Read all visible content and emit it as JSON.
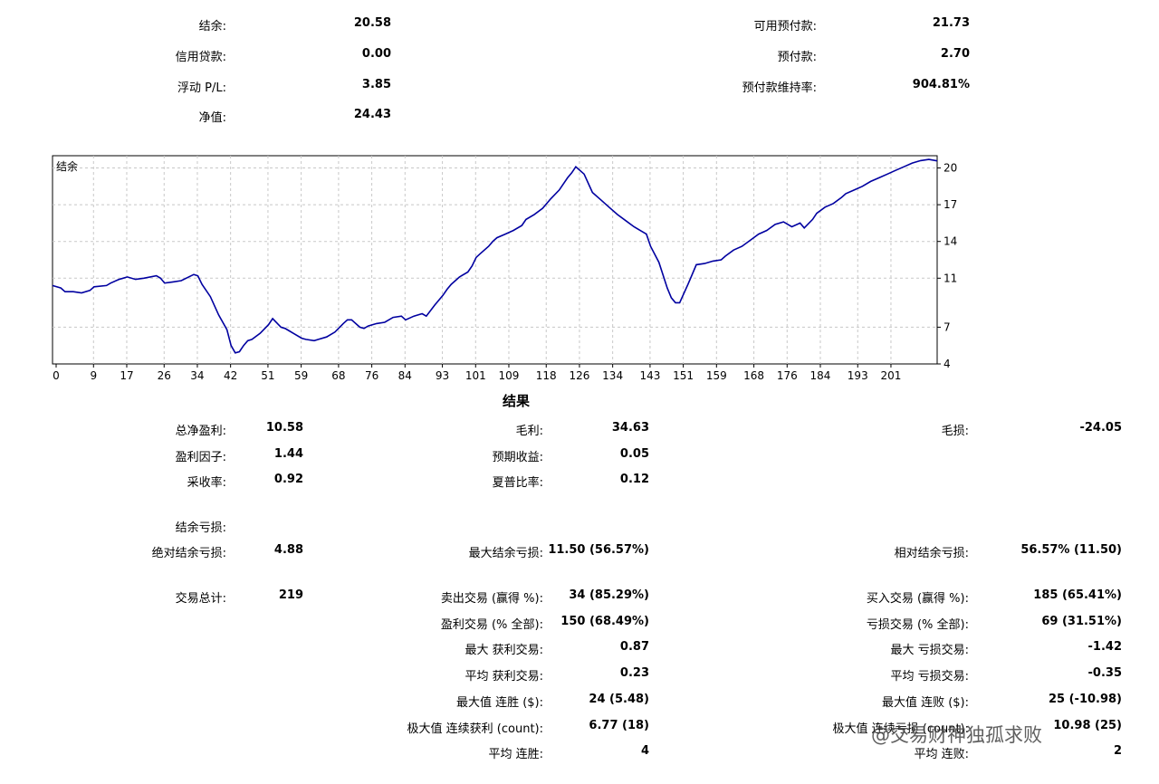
{
  "summary": {
    "balance": {
      "label": "结余:",
      "value": "20.58"
    },
    "credit": {
      "label": "信用贷款:",
      "value": "0.00"
    },
    "floating_pl": {
      "label": "浮动 P/L:",
      "value": "3.85"
    },
    "equity": {
      "label": "净值:",
      "value": "24.43"
    },
    "free_margin": {
      "label": "可用预付款:",
      "value": "21.73"
    },
    "margin": {
      "label": "预付款:",
      "value": "2.70"
    },
    "margin_level": {
      "label": "预付款维持率:",
      "value": "904.81%"
    }
  },
  "chart_data": {
    "type": "line",
    "title": "结余",
    "xlabel": "",
    "ylabel": "",
    "x_ticks": [
      "0",
      "9",
      "17",
      "26",
      "34",
      "42",
      "51",
      "59",
      "68",
      "76",
      "84",
      "93",
      "101",
      "109",
      "118",
      "126",
      "134",
      "143",
      "151",
      "159",
      "168",
      "176",
      "184",
      "193",
      "201"
    ],
    "y_ticks": [
      "4",
      "7",
      "11",
      "14",
      "17",
      "20"
    ],
    "xlim": [
      0,
      213
    ],
    "ylim": [
      4,
      21
    ],
    "grid": true,
    "line_color": "#0000a0",
    "series": [
      {
        "name": "结余",
        "x": [
          0,
          2,
          3,
          5,
          7,
          9,
          10,
          13,
          14,
          16,
          17,
          18,
          20,
          22,
          25,
          26,
          27,
          29,
          31,
          34,
          35,
          36,
          38,
          40,
          42,
          43,
          44,
          45,
          46,
          47,
          48,
          50,
          52,
          53,
          55,
          56,
          57,
          58,
          60,
          61,
          63,
          64,
          66,
          68,
          70,
          71,
          72,
          74,
          75,
          76,
          78,
          80,
          82,
          84,
          85,
          87,
          89,
          90,
          92,
          94,
          95,
          96,
          98,
          100,
          101,
          102,
          103,
          105,
          106,
          107,
          109,
          111,
          113,
          114,
          116,
          118,
          120,
          122,
          124,
          125,
          126,
          128,
          130,
          132,
          134,
          136,
          138,
          140,
          143,
          144,
          146,
          148,
          149,
          150,
          151,
          153,
          155,
          157,
          159,
          161,
          162,
          164,
          166,
          168,
          170,
          172,
          174,
          176,
          178,
          180,
          181,
          183,
          184,
          186,
          188,
          190,
          191,
          193,
          195,
          197,
          199,
          201,
          203,
          205,
          207,
          209,
          211,
          213
        ],
        "y": [
          10.4,
          10.2,
          9.9,
          9.9,
          9.8,
          10.0,
          10.3,
          10.4,
          10.6,
          10.9,
          11.0,
          11.1,
          10.9,
          11.0,
          11.2,
          11.0,
          10.6,
          10.7,
          10.8,
          11.3,
          11.2,
          10.5,
          9.5,
          8.0,
          6.8,
          5.5,
          4.9,
          5.0,
          5.5,
          5.9,
          6.0,
          6.5,
          7.2,
          7.7,
          7.0,
          6.9,
          6.7,
          6.5,
          6.1,
          6.0,
          5.9,
          6.0,
          6.2,
          6.6,
          7.3,
          7.6,
          7.6,
          7.0,
          6.9,
          7.1,
          7.3,
          7.4,
          7.8,
          7.9,
          7.6,
          7.9,
          8.1,
          7.9,
          8.8,
          9.6,
          10.1,
          10.5,
          11.1,
          11.5,
          12.0,
          12.7,
          13.0,
          13.6,
          14.0,
          14.3,
          14.6,
          14.9,
          15.3,
          15.8,
          16.2,
          16.7,
          17.5,
          18.2,
          19.2,
          19.6,
          20.1,
          19.5,
          18.0,
          17.4,
          16.8,
          16.2,
          15.7,
          15.2,
          14.6,
          13.6,
          12.3,
          10.2,
          9.4,
          9.0,
          9.0,
          10.5,
          12.1,
          12.2,
          12.4,
          12.5,
          12.8,
          13.3,
          13.6,
          14.1,
          14.6,
          14.9,
          15.4,
          15.6,
          15.2,
          15.5,
          15.1,
          15.8,
          16.3,
          16.8,
          17.1,
          17.6,
          17.9,
          18.2,
          18.5,
          18.9,
          19.2,
          19.5,
          19.8,
          20.1,
          20.4,
          20.6,
          20.7,
          20.58
        ]
      }
    ]
  },
  "results": {
    "title": "结果",
    "total_net_profit": {
      "label": "总净盈利:",
      "value": "10.58"
    },
    "gross_profit": {
      "label": "毛利:",
      "value": "34.63"
    },
    "gross_loss": {
      "label": "毛损:",
      "value": "-24.05"
    },
    "profit_factor": {
      "label": "盈利因子:",
      "value": "1.44"
    },
    "expected_payoff": {
      "label": "预期收益:",
      "value": "0.05"
    },
    "recovery_factor": {
      "label": "采收率:",
      "value": "0.92"
    },
    "sharpe_ratio": {
      "label": "夏普比率:",
      "value": "0.12"
    },
    "drawdown_header": {
      "label": "结余亏损:"
    },
    "abs_drawdown": {
      "label": "绝对结余亏损:",
      "value": "4.88"
    },
    "max_drawdown": {
      "label": "最大结余亏损:",
      "value": "11.50 (56.57%)"
    },
    "rel_drawdown": {
      "label": "相对结余亏损:",
      "value": "56.57% (11.50)"
    },
    "total_trades": {
      "label": "交易总计:",
      "value": "219"
    },
    "short_trades": {
      "label": "卖出交易 (赢得 %):",
      "value": "34 (85.29%)"
    },
    "long_trades": {
      "label": "买入交易 (赢得 %):",
      "value": "185 (65.41%)"
    },
    "profit_trades": {
      "label": "盈利交易 (% 全部):",
      "value": "150 (68.49%)"
    },
    "loss_trades": {
      "label": "亏损交易 (% 全部):",
      "value": "69 (31.51%)"
    },
    "largest_profit": {
      "label": "最大 获利交易:",
      "value": "0.87"
    },
    "largest_loss": {
      "label": "最大 亏损交易:",
      "value": "-1.42"
    },
    "avg_profit": {
      "label": "平均 获利交易:",
      "value": "0.23"
    },
    "avg_loss": {
      "label": "平均 亏损交易:",
      "value": "-0.35"
    },
    "max_consec_wins": {
      "label": "最大值 连胜 ($):",
      "value": "24 (5.48)"
    },
    "max_consec_losses": {
      "label": "最大值 连败 ($):",
      "value": "25 (-10.98)"
    },
    "max_consec_profit": {
      "label": "极大值 连续获利 (count):",
      "value": "6.77 (18)"
    },
    "max_consec_loss": {
      "label": "极大值 连续亏损 (count):",
      "value": "10.98 (25)"
    },
    "avg_consec_wins": {
      "label": "平均 连胜:",
      "value": "4"
    },
    "avg_consec_losses": {
      "label": "平均 连败:",
      "value": "2"
    }
  },
  "watermark": {
    "text": "@交易财神独孤求败"
  }
}
